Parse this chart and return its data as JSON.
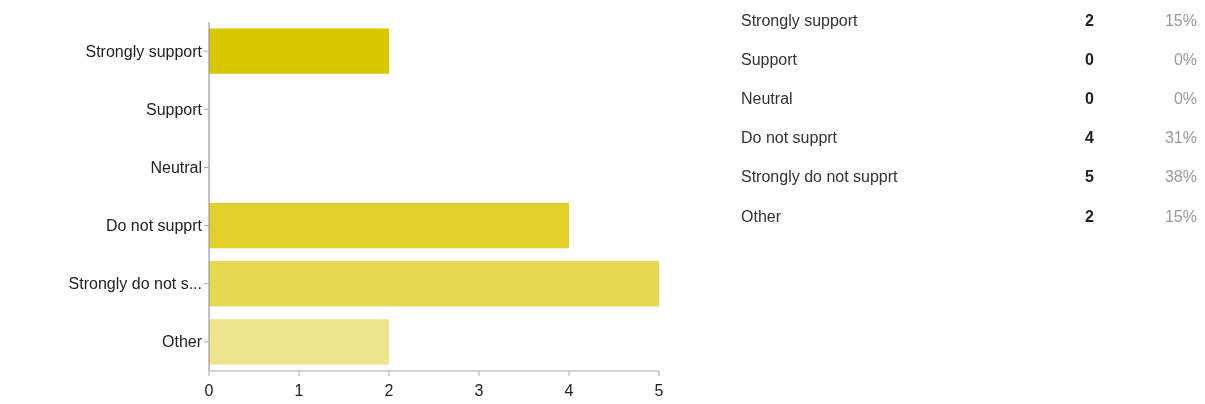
{
  "chart_data": [
    {
      "type": "bar",
      "orientation": "horizontal",
      "categories": [
        "Strongly support",
        "Support",
        "Neutral",
        "Do not supprt",
        "Strongly do not s...",
        "Other"
      ],
      "values": [
        2,
        0,
        0,
        4,
        5,
        2
      ],
      "colors": [
        "#d9c800",
        "#dccb10",
        "#decd18",
        "#e1d02c",
        "#e5d850",
        "#eee48e"
      ],
      "xlim": [
        0,
        5
      ],
      "xticks": [
        0,
        1,
        2,
        3,
        4,
        5
      ]
    },
    {
      "type": "other",
      "categories": [
        "Strongly support",
        "Support",
        "Neutral",
        "Do not supprt",
        "Strongly do not supprt",
        "Other"
      ],
      "series": [
        {
          "values": [
            2,
            0,
            0,
            4,
            5,
            2
          ]
        },
        {
          "values": [
            15,
            0,
            0,
            31,
            38,
            15
          ],
          "value_labels": [
            "15%",
            "0%",
            "0%",
            "31%",
            "38%",
            "15%"
          ]
        }
      ],
      "data_labels": true
    }
  ]
}
